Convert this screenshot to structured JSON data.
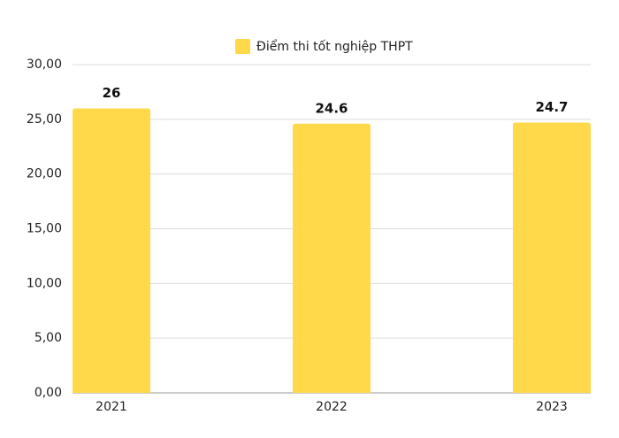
{
  "chart_data": {
    "type": "bar",
    "categories": [
      "2021",
      "2022",
      "2023"
    ],
    "series": [
      {
        "name": "Điểm thi tốt nghiệp THPT",
        "color": "#ffd94a",
        "values": [
          26,
          24.6,
          24.7
        ]
      }
    ],
    "ylim": [
      0,
      30
    ],
    "yticks": [
      {
        "value": 0,
        "label": "0,00"
      },
      {
        "value": 5,
        "label": "5,00"
      },
      {
        "value": 10,
        "label": "10,00"
      },
      {
        "value": 15,
        "label": "15,00"
      },
      {
        "value": 20,
        "label": "20,00"
      },
      {
        "value": 25,
        "label": "25,00"
      },
      {
        "value": 30,
        "label": "30,00"
      }
    ],
    "grid": true,
    "legend": "top"
  }
}
